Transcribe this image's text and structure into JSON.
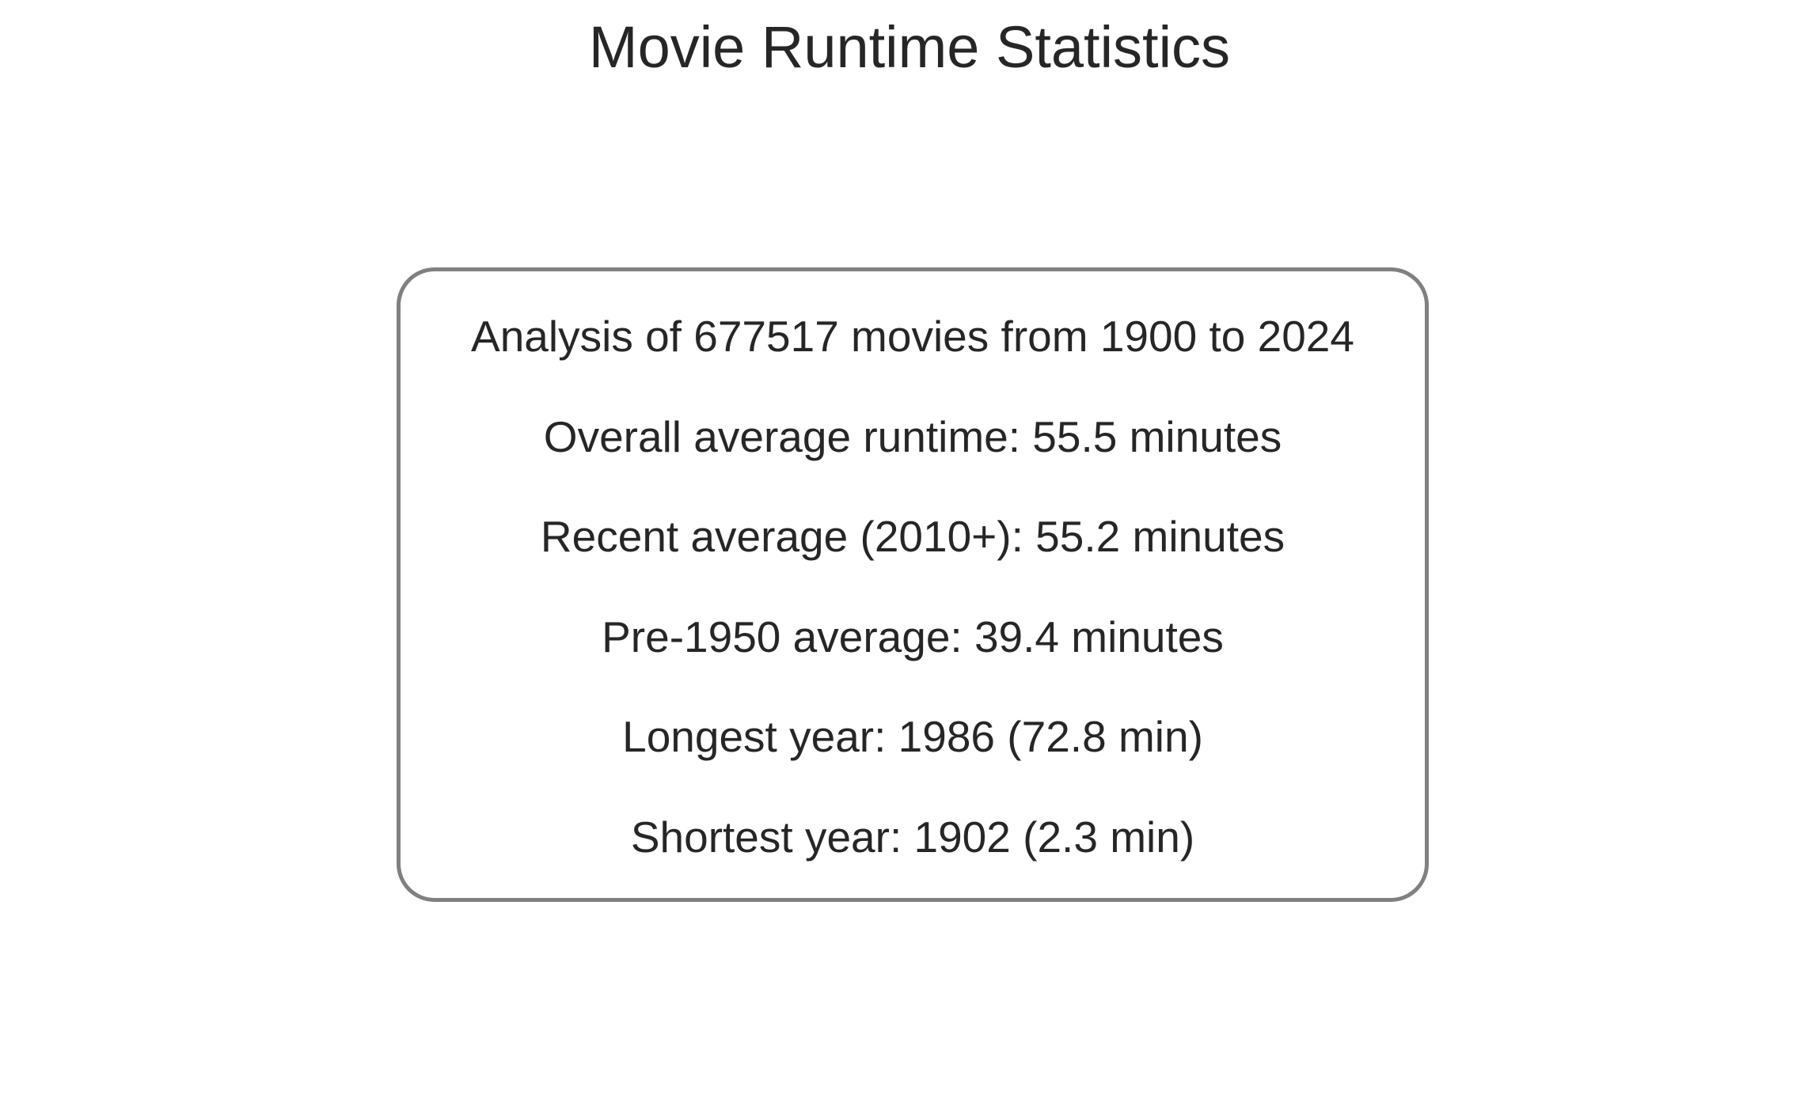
{
  "chart_data": {
    "type": "table",
    "title": "Movie Runtime Statistics",
    "lines": [
      "Analysis of 677517 movies from 1900 to 2024",
      "Overall average runtime: 55.5 minutes",
      "Recent average (2010+): 55.2 minutes",
      "Pre-1950 average: 39.4 minutes",
      "Longest year: 1986 (72.8 min)",
      "Shortest year: 1902 (2.3 min)"
    ],
    "colors": {
      "text": "#262626",
      "box_border": "#808080",
      "background": "#ffffff"
    }
  }
}
